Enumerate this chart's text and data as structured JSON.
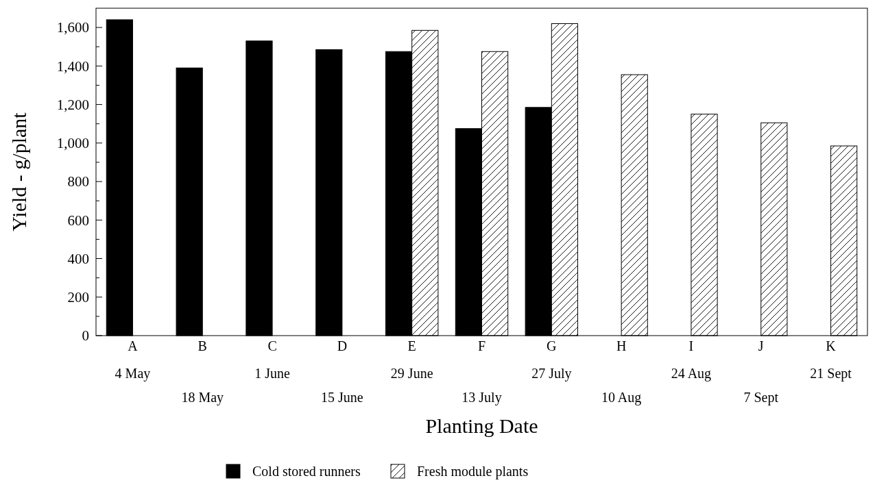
{
  "chart_data": {
    "type": "bar",
    "xlabel": "Planting Date",
    "ylabel": "Yield - g/plant",
    "categories": [
      "A\n4 May",
      "B\n18 May",
      "C\n1 June",
      "D\n15 June",
      "E\n29 June",
      "F\n13 July",
      "G\n27 July",
      "H\n10 Aug",
      "I\n24 Aug",
      "J\n7 Sept",
      "K\n21 Sept"
    ],
    "series": [
      {
        "name": "Cold stored runners",
        "color": "#000000",
        "values": [
          1640,
          1390,
          1530,
          1485,
          1475,
          1075,
          1185,
          null,
          null,
          null,
          null
        ]
      },
      {
        "name": "Fresh module plants",
        "color": "#000000",
        "values": [
          null,
          null,
          null,
          null,
          1585,
          1475,
          1620,
          1355,
          1150,
          1105,
          985
        ]
      }
    ],
    "ylim": [
      0,
      1700
    ],
    "yticks": [
      0,
      {
        "value": 100,
        "label": null
      },
      {
        "value": 200,
        "label": "200"
      },
      {
        "value": 300,
        "label": null
      },
      {
        "value": 400,
        "label": "400"
      },
      {
        "value": 500,
        "label": null
      },
      {
        "value": 600,
        "label": "600"
      },
      {
        "value": 700,
        "label": null
      },
      {
        "value": 800,
        "label": "800"
      },
      {
        "value": 900,
        "label": null
      },
      {
        "value": 1000,
        "label": "1,000"
      },
      {
        "value": 1100,
        "label": null
      },
      {
        "value": 1200,
        "label": "1,200"
      },
      {
        "value": 1300,
        "label": null
      },
      {
        "value": 1400,
        "label": "1,400"
      },
      {
        "value": 1500,
        "label": null
      },
      {
        "value": 1600,
        "label": "1,600"
      }
    ],
    "grid": false,
    "legend": "bottom"
  }
}
